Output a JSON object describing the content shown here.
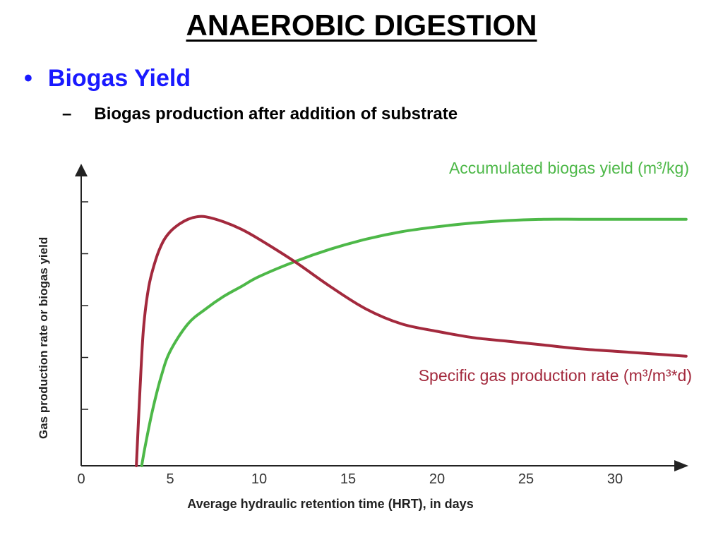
{
  "slide": {
    "title": "ANAEROBIC DIGESTION",
    "bullet": "Biogas Yield",
    "subbullet_dash": "–",
    "subbullet": "Biogas production after addition of substrate",
    "bullet_color": "#1a1aff"
  },
  "chart_data": {
    "type": "line",
    "xlabel": "Average hydraulic retention time (HRT), in days",
    "ylabel": "Gas production rate or biogas yield",
    "x_ticks": [
      0,
      5,
      10,
      15,
      20,
      25,
      30
    ],
    "xlim": [
      0,
      34
    ],
    "ylim": [
      0,
      1
    ],
    "y_tick_count": 5,
    "y_tick_labels": false,
    "grid": false,
    "series": [
      {
        "name": "Accumulated biogas yield (m³/kg)",
        "color": "#4db848",
        "x": [
          3.4,
          3.6,
          4.0,
          4.5,
          5.0,
          6.0,
          7.0,
          8.0,
          9.0,
          10.0,
          12.0,
          14.0,
          16.0,
          18.0,
          20.0,
          22.0,
          24.0,
          26.0,
          28.0,
          30.0,
          32.0,
          34.0
        ],
        "y": [
          0.0,
          0.08,
          0.22,
          0.36,
          0.46,
          0.57,
          0.63,
          0.68,
          0.72,
          0.76,
          0.82,
          0.87,
          0.91,
          0.94,
          0.96,
          0.975,
          0.985,
          0.99,
          0.99,
          0.99,
          0.99,
          0.99
        ]
      },
      {
        "name": "Specific gas production rate (m³/m³*d)",
        "color": "#a3293d",
        "x": [
          3.1,
          3.3,
          3.5,
          3.8,
          4.2,
          4.6,
          5.0,
          5.5,
          6.0,
          6.5,
          7.0,
          8.0,
          9.0,
          10.0,
          12.0,
          14.0,
          16.0,
          18.0,
          20.0,
          22.0,
          24.0,
          26.0,
          28.0,
          30.0,
          32.0,
          34.0
        ],
        "y": [
          0.0,
          0.3,
          0.55,
          0.72,
          0.83,
          0.9,
          0.94,
          0.97,
          0.99,
          1.0,
          1.0,
          0.98,
          0.95,
          0.91,
          0.82,
          0.72,
          0.63,
          0.57,
          0.54,
          0.515,
          0.5,
          0.485,
          0.47,
          0.46,
          0.45,
          0.44
        ]
      }
    ]
  }
}
